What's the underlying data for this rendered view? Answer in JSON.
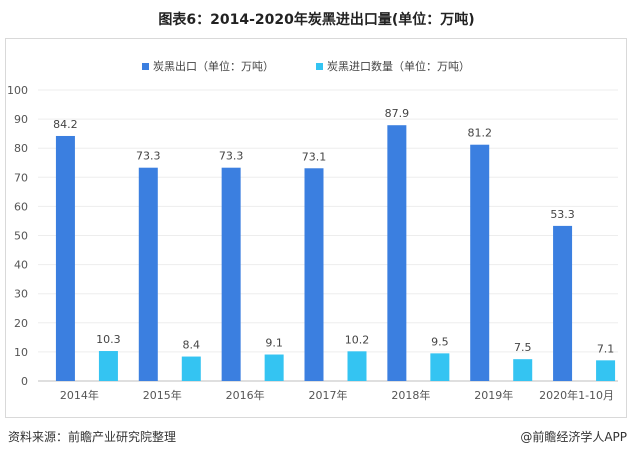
{
  "title": "图表6：2014-2020年炭黑进出口量(单位：万吨)",
  "footer": {
    "source": "资料来源：前瞻产业研究院整理",
    "brand": "@前瞻经济学人APP"
  },
  "colors": {
    "series1": "#3b7fe0",
    "series2": "#34c4f2",
    "axis": "#bfbfbf",
    "grid": "#ededed"
  },
  "chart_data": {
    "type": "bar",
    "title": "图表6：2014-2020年炭黑进出口量(单位：万吨)",
    "categories": [
      "2014年",
      "2015年",
      "2016年",
      "2017年",
      "2018年",
      "2019年",
      "2020年1-10月"
    ],
    "series": [
      {
        "name": "炭黑出口（单位：万吨）",
        "values": [
          84.2,
          73.3,
          73.3,
          73.1,
          87.9,
          81.2,
          53.3
        ],
        "labels": [
          "84.2",
          "73.3",
          "73.3",
          "73.1",
          "87.9",
          "81.2",
          "53.3"
        ]
      },
      {
        "name": "炭黑进口数量（单位：万吨）",
        "values": [
          10.3,
          8.4,
          9.1,
          10.2,
          9.5,
          7.5,
          7.1
        ],
        "labels": [
          "10.3",
          "8.4",
          "9.1",
          "10.2",
          "9.5",
          "7.5",
          "7.1"
        ]
      }
    ],
    "ylim": [
      0,
      100
    ],
    "yticks": [
      "0",
      "10",
      "20",
      "30",
      "40",
      "50",
      "60",
      "70",
      "80",
      "90",
      "100"
    ],
    "legend_position": "top-center",
    "xlabel": "",
    "ylabel": ""
  }
}
